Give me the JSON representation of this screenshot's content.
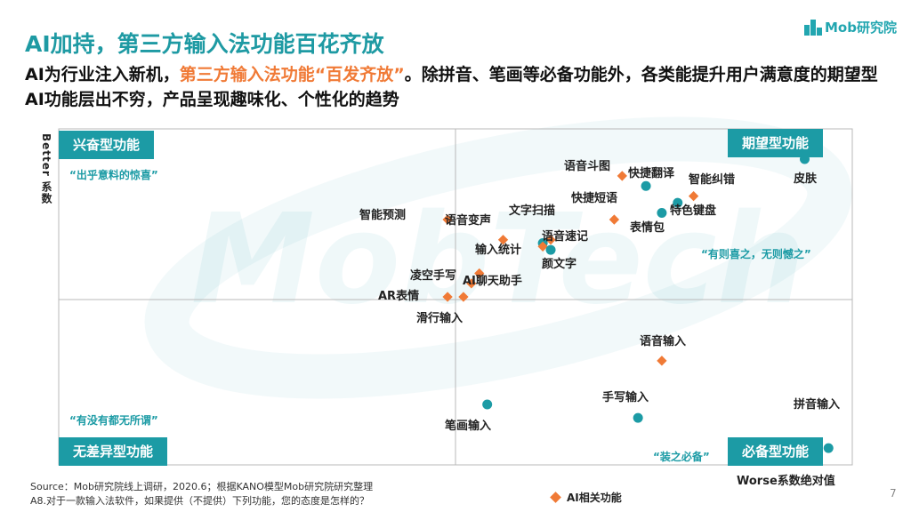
{
  "header": {
    "title": "AI加持，第三方输入法功能百花齐放",
    "logo_text": "Mob研究院"
  },
  "subtitle": {
    "part1": "AI为行业注入新机，",
    "highlight": "第三方输入法功能“百发齐放”",
    "part2": "。除拼音、笔画等必备功能外，各类能提升用户满意度的期望型AI功能层出不穷，产品呈现趣味化、个性化的趋势"
  },
  "watermark_text": "MobTech",
  "colors": {
    "teal": "#1c9ba5",
    "orange": "#f07a36",
    "title_teal": "#1e9aa3"
  },
  "chart_data": {
    "type": "scatter",
    "xlabel": "Worse系数绝对值",
    "ylabel": "Better 系数",
    "quadrants": {
      "top_left": {
        "label": "兴奋型功能",
        "quote": "“出乎意料的惊喜”"
      },
      "top_right": {
        "label": "期望型功能",
        "quote": "“有则喜之，无则憾之”"
      },
      "bottom_left": {
        "label": "无差异型功能",
        "quote": "“有没有都无所谓”"
      },
      "bottom_right": {
        "label": "必备型功能",
        "quote": "“装之必备”"
      }
    },
    "legend": {
      "ai_label": "AI相关功能"
    },
    "xlim": [
      0,
      100
    ],
    "ylim": [
      0,
      100
    ],
    "points": [
      {
        "name": "皮肤",
        "x": 94,
        "y": 91,
        "ai": false
      },
      {
        "name": "语音斗图",
        "x": 71,
        "y": 86,
        "ai": true
      },
      {
        "name": "快捷翻译",
        "x": 74,
        "y": 83,
        "ai": false
      },
      {
        "name": "智能纠错",
        "x": 80,
        "y": 80,
        "ai": true
      },
      {
        "name": "特色键盘",
        "x": 78,
        "y": 78,
        "ai": false
      },
      {
        "name": "快捷短语",
        "x": 70,
        "y": 73,
        "ai": true
      },
      {
        "name": "表情包",
        "x": 76,
        "y": 75,
        "ai": false
      },
      {
        "name": "智能预测",
        "x": 49,
        "y": 73,
        "ai": true
      },
      {
        "name": "语音变声",
        "x": 56,
        "y": 67,
        "ai": true
      },
      {
        "name": "文字扫描",
        "x": 62,
        "y": 67,
        "ai": true
      },
      {
        "name": "输入统计",
        "x": 61,
        "y": 66,
        "ai": false
      },
      {
        "name": "语音速记",
        "x": 61,
        "y": 65,
        "ai": true
      },
      {
        "name": "颜文字",
        "x": 62,
        "y": 64,
        "ai": false
      },
      {
        "name": "凌空手写",
        "x": 53,
        "y": 57,
        "ai": true
      },
      {
        "name": "AI聊天助手",
        "x": 52,
        "y": 54,
        "ai": true
      },
      {
        "name": "AR表情",
        "x": 49,
        "y": 50,
        "ai": true
      },
      {
        "name": "滑行输入",
        "x": 51,
        "y": 50,
        "ai": true
      },
      {
        "name": "语音输入",
        "x": 76,
        "y": 31,
        "ai": true
      },
      {
        "name": "手写输入",
        "x": 73,
        "y": 14,
        "ai": false
      },
      {
        "name": "笔画输入",
        "x": 54,
        "y": 18,
        "ai": false
      },
      {
        "name": "拼音输入",
        "x": 97,
        "y": 5,
        "ai": false
      }
    ]
  },
  "footer": {
    "source": "Source：Mob研究院线上调研，2020.6；根据KANO模型Mob研究院研究整理",
    "note": "A8.对于一款输入法软件，如果提供（不提供）下列功能，您的态度是怎样的？",
    "page_number": "7"
  }
}
